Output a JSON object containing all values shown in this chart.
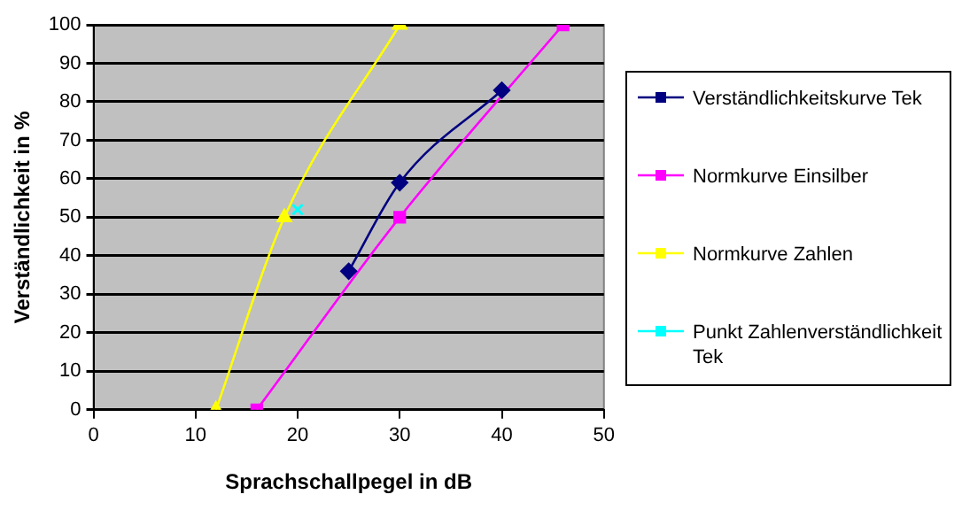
{
  "chart_data": {
    "type": "line",
    "xlabel": "Sprachschallpegel in dB",
    "ylabel": "Verständlichkeit in %",
    "xlim": [
      0,
      50
    ],
    "xticks": [
      0,
      10,
      20,
      30,
      40,
      50
    ],
    "ylim": [
      0,
      100
    ],
    "yticks": [
      0,
      10,
      20,
      30,
      40,
      50,
      60,
      70,
      80,
      90,
      100
    ],
    "grid": "y",
    "legend": "right",
    "series": [
      {
        "name": "Verständlichkeitskurve Tek",
        "color": "#000080",
        "marker": "diamond",
        "x": [
          25,
          30,
          40
        ],
        "values": [
          36,
          59,
          83
        ]
      },
      {
        "name": "Normkurve Einsilber",
        "color": "#ff00ff",
        "marker": "square",
        "x": [
          16,
          30,
          46
        ],
        "values": [
          0,
          50,
          100
        ]
      },
      {
        "name": "Normkurve Zahlen",
        "color": "#ffff00",
        "marker": "triangle",
        "x": [
          12,
          18.7,
          30
        ],
        "values": [
          0,
          50,
          100
        ]
      },
      {
        "name": "Punkt Zahlenverständlichkeit Tek",
        "color": "#00ffff",
        "marker": "cross",
        "x": [
          20
        ],
        "values": [
          52
        ]
      }
    ]
  }
}
